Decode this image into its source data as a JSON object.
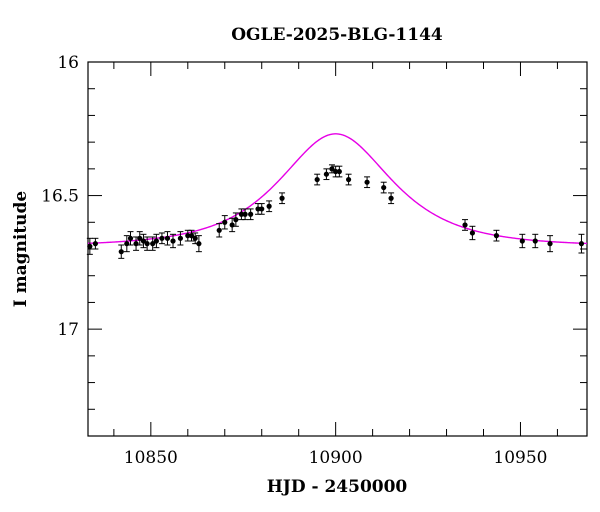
{
  "chart_data": {
    "type": "scatter",
    "title": "OGLE-2025-BLG-1144",
    "xlabel": "HJD - 2450000",
    "ylabel": "I magnitude",
    "xlim": [
      10833,
      10968
    ],
    "ylim": [
      17.4,
      16.0
    ],
    "y_inverted": true,
    "grid": false,
    "x_major_ticks": [
      10850,
      10900,
      10950
    ],
    "x_tick_labels": [
      "10850",
      "10900",
      "10950"
    ],
    "x_minor_step": 10,
    "y_major_ticks": [
      16.0,
      16.5,
      17.0
    ],
    "y_tick_labels": [
      "16",
      "16.5",
      "17"
    ],
    "y_minor_step": 0.1,
    "model_color": "#e600e6",
    "point_color": "#000000",
    "model": {
      "type": "point-lens microlensing fit",
      "t0": 10900,
      "u0": 0.85,
      "tE": 20,
      "baseline_mag": 16.69
    },
    "series": [
      {
        "x": [
          10833.5,
          10835.0,
          10842.0,
          10843.5,
          10844.5,
          10846.0,
          10847.0,
          10848.0,
          10849.0,
          10850.5,
          10851.5,
          10853.0,
          10854.5,
          10856.0,
          10858.0,
          10860.0,
          10861.0,
          10862.0,
          10863.0,
          10868.5,
          10870.0,
          10872.0,
          10873.0,
          10874.5,
          10875.5,
          10877.0,
          10879.0,
          10880.0,
          10882.0,
          10885.5,
          10895.0,
          10897.5,
          10899.0,
          10900.0,
          10901.0,
          10903.5,
          10908.5,
          10913.0,
          10915.0,
          10935.0,
          10937.0,
          10943.5,
          10950.5,
          10954.0,
          10958.0,
          10966.5
        ],
        "y": [
          16.69,
          16.68,
          16.71,
          16.68,
          16.66,
          16.68,
          16.66,
          16.67,
          16.68,
          16.68,
          16.67,
          16.66,
          16.66,
          16.67,
          16.66,
          16.65,
          16.65,
          16.66,
          16.68,
          16.63,
          16.6,
          16.61,
          16.59,
          16.57,
          16.57,
          16.57,
          16.55,
          16.55,
          16.54,
          16.51,
          16.44,
          16.42,
          16.4,
          16.41,
          16.41,
          16.44,
          16.45,
          16.47,
          16.51,
          16.61,
          16.64,
          16.65,
          16.67,
          16.67,
          16.68,
          16.68
        ],
        "yerr": [
          0.03,
          0.02,
          0.025,
          0.03,
          0.025,
          0.025,
          0.025,
          0.025,
          0.025,
          0.025,
          0.025,
          0.02,
          0.025,
          0.025,
          0.025,
          0.02,
          0.02,
          0.02,
          0.03,
          0.025,
          0.025,
          0.025,
          0.025,
          0.02,
          0.02,
          0.02,
          0.02,
          0.02,
          0.02,
          0.02,
          0.02,
          0.02,
          0.015,
          0.02,
          0.02,
          0.02,
          0.02,
          0.02,
          0.02,
          0.02,
          0.025,
          0.02,
          0.025,
          0.025,
          0.03,
          0.035
        ]
      }
    ]
  }
}
